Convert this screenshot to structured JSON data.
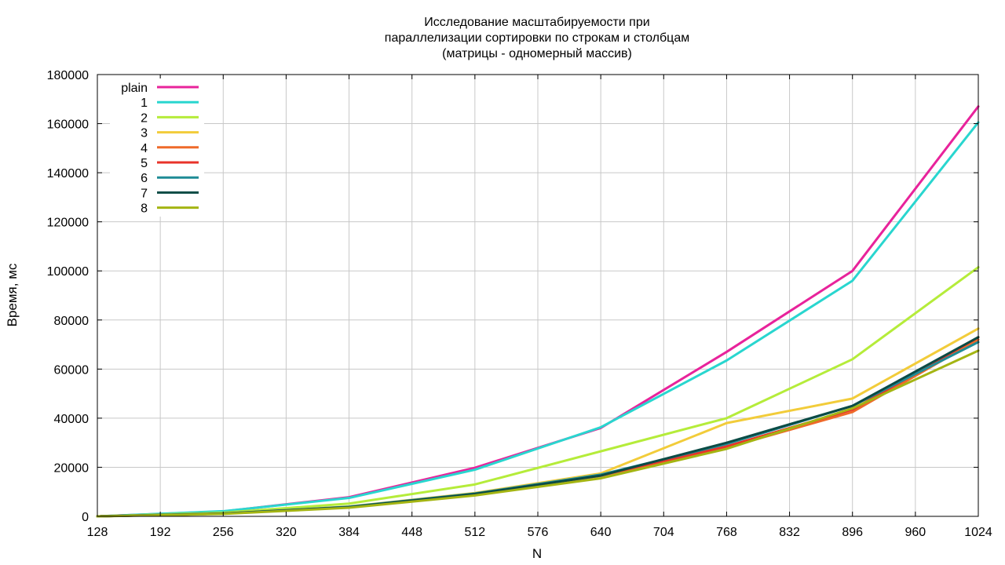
{
  "chart_data": {
    "type": "line",
    "title_lines": [
      "Исследование масштабируемости при",
      "параллелизации сортировки по строкам и столбцам",
      "(матрицы - одномерный массив)"
    ],
    "xlabel": "N",
    "ylabel": "Время, мс",
    "xlim": [
      128,
      1024
    ],
    "ylim": [
      0,
      180000
    ],
    "x_ticks": [
      128,
      192,
      256,
      320,
      384,
      448,
      512,
      576,
      640,
      704,
      768,
      832,
      896,
      960,
      1024
    ],
    "y_ticks": [
      0,
      20000,
      40000,
      60000,
      80000,
      100000,
      120000,
      140000,
      160000,
      180000
    ],
    "grid": true,
    "legend_position": "top-left",
    "x": [
      128,
      256,
      384,
      512,
      640,
      768,
      896,
      1024
    ],
    "series": [
      {
        "name": "plain",
        "color": "#e8239b",
        "values": [
          0,
          2000,
          7800,
          19800,
          36000,
          67000,
          100000,
          167000
        ]
      },
      {
        "name": "1",
        "color": "#29d6cf",
        "values": [
          0,
          2100,
          7500,
          19000,
          36300,
          63500,
          96000,
          160500
        ]
      },
      {
        "name": "2",
        "color": "#b5ec3a",
        "values": [
          0,
          1500,
          5200,
          13000,
          26500,
          40000,
          64000,
          101500
        ]
      },
      {
        "name": "3",
        "color": "#f2cc3a",
        "values": [
          0,
          1200,
          4000,
          9500,
          17500,
          38000,
          48000,
          76500
        ]
      },
      {
        "name": "4",
        "color": "#ef6a2a",
        "values": [
          0,
          1100,
          3700,
          9000,
          16500,
          28000,
          42500,
          72000
        ]
      },
      {
        "name": "5",
        "color": "#e8332a",
        "values": [
          0,
          1100,
          3800,
          9200,
          16800,
          28500,
          43500,
          73000
        ]
      },
      {
        "name": "6",
        "color": "#1f8c96",
        "values": [
          0,
          1150,
          3900,
          9300,
          17000,
          29500,
          45000,
          71000
        ]
      },
      {
        "name": "7",
        "color": "#0b4b45",
        "values": [
          0,
          1100,
          3750,
          9100,
          16600,
          30000,
          45000,
          73000
        ]
      },
      {
        "name": "8",
        "color": "#a4b513",
        "values": [
          0,
          1000,
          3500,
          8500,
          15500,
          27500,
          44000,
          67500
        ]
      }
    ]
  }
}
